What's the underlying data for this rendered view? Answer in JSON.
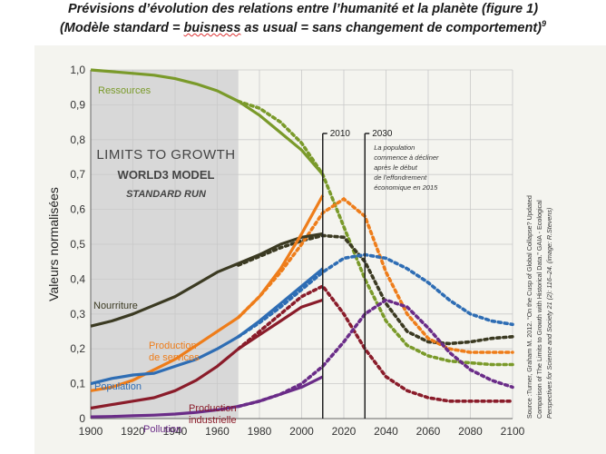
{
  "header": {
    "title": "Prévisions d’évolution des relations entre l’humanité et la planète (figure 1)",
    "subtitle_pre": "(Modèle standard = ",
    "subtitle_word": "buisness",
    "subtitle_mid": " as usual",
    "subtitle_post": " = sans changement de comportement)",
    "superscript": "9"
  },
  "chart_data": {
    "type": "line",
    "title_lines": [
      "LIMITS TO GROWTH",
      "WORLD3 MODEL",
      "STANDARD RUN"
    ],
    "ylabel": "Valeurs normalisées",
    "xlabel": "",
    "xlim": [
      1900,
      2100
    ],
    "ylim": [
      0,
      1.0
    ],
    "x_ticks": [
      "1900",
      "1920",
      "1940",
      "1960",
      "1980",
      "2000",
      "2020",
      "2040",
      "2060",
      "2080",
      "2100"
    ],
    "y_ticks": [
      "0",
      "0,1",
      "0,2",
      "0,3",
      "0,4",
      "0,5",
      "0,6",
      "0,7",
      "0,8",
      "0,9",
      "1,0"
    ],
    "grid": true,
    "shaded_region": [
      1900,
      1970
    ],
    "markers": [
      {
        "x": 2010,
        "label": "2010"
      },
      {
        "x": 2030,
        "label": "2030"
      }
    ],
    "annotation_lines": [
      "La population",
      "commence à décliner",
      "après le début",
      "de l’effondrement",
      "économique en 2015"
    ],
    "source_lines": [
      "Source :Turner, Graham M. 2012. “On the Cusp of Global Collapse? Updated",
      "Comparison of The Limits to Growth with Historical Data.” GAIA - Ecological",
      "Perspectives for Science and Society 21 (2): 116–24. (image: R.Stevens)"
    ],
    "series": [
      {
        "name": "Ressources",
        "color": "#7a9a2a",
        "solid": {
          "x": [
            1900,
            1910,
            1920,
            1930,
            1940,
            1950,
            1960,
            1970,
            1980,
            1990,
            2000,
            2010
          ],
          "y": [
            1.0,
            0.995,
            0.99,
            0.985,
            0.975,
            0.96,
            0.94,
            0.91,
            0.87,
            0.82,
            0.77,
            0.7
          ]
        },
        "projection": {
          "x": [
            1970,
            1980,
            1990,
            2000,
            2010,
            2020,
            2030,
            2040,
            2050,
            2060,
            2070,
            2080,
            2090,
            2100
          ],
          "y": [
            0.91,
            0.89,
            0.85,
            0.79,
            0.7,
            0.55,
            0.4,
            0.28,
            0.21,
            0.18,
            0.165,
            0.16,
            0.155,
            0.155
          ]
        }
      },
      {
        "name": "Nourriture",
        "color": "#3b3a22",
        "solid": {
          "x": [
            1900,
            1910,
            1920,
            1930,
            1940,
            1950,
            1960,
            1970,
            1980,
            1990,
            2000,
            2010
          ],
          "y": [
            0.265,
            0.28,
            0.3,
            0.325,
            0.35,
            0.385,
            0.42,
            0.445,
            0.47,
            0.5,
            0.52,
            0.53
          ]
        },
        "projection": {
          "x": [
            1970,
            1980,
            1990,
            2000,
            2010,
            2020,
            2030,
            2040,
            2050,
            2060,
            2070,
            2080,
            2090,
            2100
          ],
          "y": [
            0.44,
            0.465,
            0.49,
            0.51,
            0.525,
            0.52,
            0.45,
            0.33,
            0.25,
            0.22,
            0.215,
            0.22,
            0.23,
            0.235
          ]
        }
      },
      {
        "name": "Production de services",
        "color": "#ee7d1a",
        "solid": {
          "x": [
            1900,
            1910,
            1920,
            1930,
            1940,
            1950,
            1960,
            1970,
            1980,
            1990,
            2000,
            2010
          ],
          "y": [
            0.08,
            0.09,
            0.11,
            0.14,
            0.17,
            0.21,
            0.25,
            0.29,
            0.35,
            0.43,
            0.53,
            0.64
          ]
        },
        "projection": {
          "x": [
            1970,
            1980,
            1990,
            2000,
            2010,
            2020,
            2030,
            2040,
            2050,
            2060,
            2070,
            2080,
            2090,
            2100
          ],
          "y": [
            0.29,
            0.35,
            0.42,
            0.5,
            0.59,
            0.63,
            0.58,
            0.42,
            0.3,
            0.23,
            0.2,
            0.19,
            0.19,
            0.19
          ]
        }
      },
      {
        "name": "Population",
        "color": "#2e6db4",
        "solid": {
          "x": [
            1900,
            1910,
            1920,
            1930,
            1940,
            1950,
            1960,
            1970,
            1980,
            1990,
            2000,
            2010
          ],
          "y": [
            0.1,
            0.115,
            0.125,
            0.13,
            0.15,
            0.17,
            0.2,
            0.235,
            0.28,
            0.33,
            0.38,
            0.43
          ]
        },
        "projection": {
          "x": [
            1970,
            1980,
            1990,
            2000,
            2010,
            2020,
            2030,
            2040,
            2050,
            2060,
            2070,
            2080,
            2090,
            2100
          ],
          "y": [
            0.235,
            0.275,
            0.32,
            0.37,
            0.42,
            0.46,
            0.47,
            0.46,
            0.43,
            0.39,
            0.34,
            0.3,
            0.28,
            0.27
          ]
        }
      },
      {
        "name": "Production industrielle",
        "color": "#8a1c2a",
        "solid": {
          "x": [
            1900,
            1910,
            1920,
            1930,
            1940,
            1950,
            1960,
            1970,
            1980,
            1990,
            2000,
            2010
          ],
          "y": [
            0.03,
            0.04,
            0.05,
            0.06,
            0.08,
            0.11,
            0.15,
            0.2,
            0.24,
            0.28,
            0.32,
            0.34
          ]
        },
        "projection": {
          "x": [
            1970,
            1980,
            1990,
            2000,
            2010,
            2020,
            2030,
            2040,
            2050,
            2060,
            2070,
            2080,
            2090,
            2100
          ],
          "y": [
            0.2,
            0.25,
            0.3,
            0.35,
            0.38,
            0.3,
            0.2,
            0.12,
            0.08,
            0.06,
            0.05,
            0.05,
            0.05,
            0.05
          ]
        }
      },
      {
        "name": "Pollution",
        "color": "#6a2c88",
        "solid": {
          "x": [
            1900,
            1910,
            1920,
            1930,
            1940,
            1950,
            1960,
            1970,
            1980,
            1990,
            2000,
            2010
          ],
          "y": [
            0.005,
            0.006,
            0.008,
            0.01,
            0.013,
            0.018,
            0.025,
            0.035,
            0.05,
            0.07,
            0.09,
            0.12
          ]
        },
        "projection": {
          "x": [
            1970,
            1980,
            1990,
            2000,
            2010,
            2020,
            2030,
            2040,
            2050,
            2060,
            2070,
            2080,
            2090,
            2100
          ],
          "y": [
            0.035,
            0.05,
            0.07,
            0.1,
            0.15,
            0.22,
            0.3,
            0.34,
            0.32,
            0.26,
            0.19,
            0.14,
            0.11,
            0.09
          ]
        }
      }
    ]
  }
}
